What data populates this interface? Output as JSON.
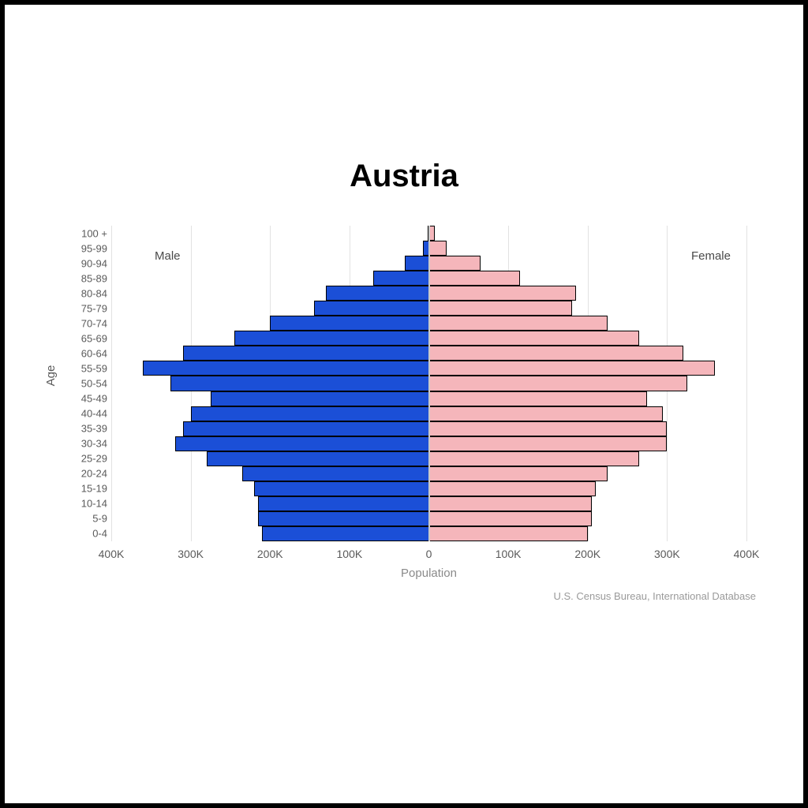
{
  "title": "Austria",
  "title_fontsize": 40,
  "credit": "U.S. Census Bureau, International Database",
  "chart": {
    "type": "population-pyramid",
    "background_color": "#ffffff",
    "grid_color": "#e2e2e2",
    "axis_color": "#c9c9c9",
    "male_color": "#1b4fd7",
    "female_color": "#f5b6bb",
    "bar_border_color": "#000000",
    "x_axis": {
      "title": "Population",
      "max_abs": 400000,
      "ticks": [
        -400000,
        -300000,
        -200000,
        -100000,
        0,
        100000,
        200000,
        300000,
        400000
      ],
      "tick_labels": [
        "400K",
        "300K",
        "200K",
        "100K",
        "0",
        "100K",
        "200K",
        "300K",
        "400K"
      ],
      "label_fontsize": 14,
      "title_fontsize": 15
    },
    "y_axis": {
      "title": "Age",
      "label_fontsize": 13,
      "title_fontsize": 15
    },
    "legend": {
      "male_label": "Male",
      "female_label": "Female",
      "fontsize": 15
    },
    "age_groups": [
      {
        "label": "0-4",
        "male": 210000,
        "female": 200000
      },
      {
        "label": "5-9",
        "male": 215000,
        "female": 205000
      },
      {
        "label": "10-14",
        "male": 215000,
        "female": 205000
      },
      {
        "label": "15-19",
        "male": 220000,
        "female": 210000
      },
      {
        "label": "20-24",
        "male": 235000,
        "female": 225000
      },
      {
        "label": "25-29",
        "male": 280000,
        "female": 265000
      },
      {
        "label": "30-34",
        "male": 320000,
        "female": 300000
      },
      {
        "label": "35-39",
        "male": 310000,
        "female": 300000
      },
      {
        "label": "40-44",
        "male": 300000,
        "female": 295000
      },
      {
        "label": "45-49",
        "male": 275000,
        "female": 275000
      },
      {
        "label": "50-54",
        "male": 325000,
        "female": 325000
      },
      {
        "label": "55-59",
        "male": 360000,
        "female": 360000
      },
      {
        "label": "60-64",
        "male": 310000,
        "female": 320000
      },
      {
        "label": "65-69",
        "male": 245000,
        "female": 265000
      },
      {
        "label": "70-74",
        "male": 200000,
        "female": 225000
      },
      {
        "label": "75-79",
        "male": 145000,
        "female": 180000
      },
      {
        "label": "80-84",
        "male": 130000,
        "female": 185000
      },
      {
        "label": "85-89",
        "male": 70000,
        "female": 115000
      },
      {
        "label": "90-94",
        "male": 30000,
        "female": 65000
      },
      {
        "label": "95-99",
        "male": 7000,
        "female": 22000
      },
      {
        "label": "100 +",
        "male": 2000,
        "female": 7000
      }
    ]
  }
}
